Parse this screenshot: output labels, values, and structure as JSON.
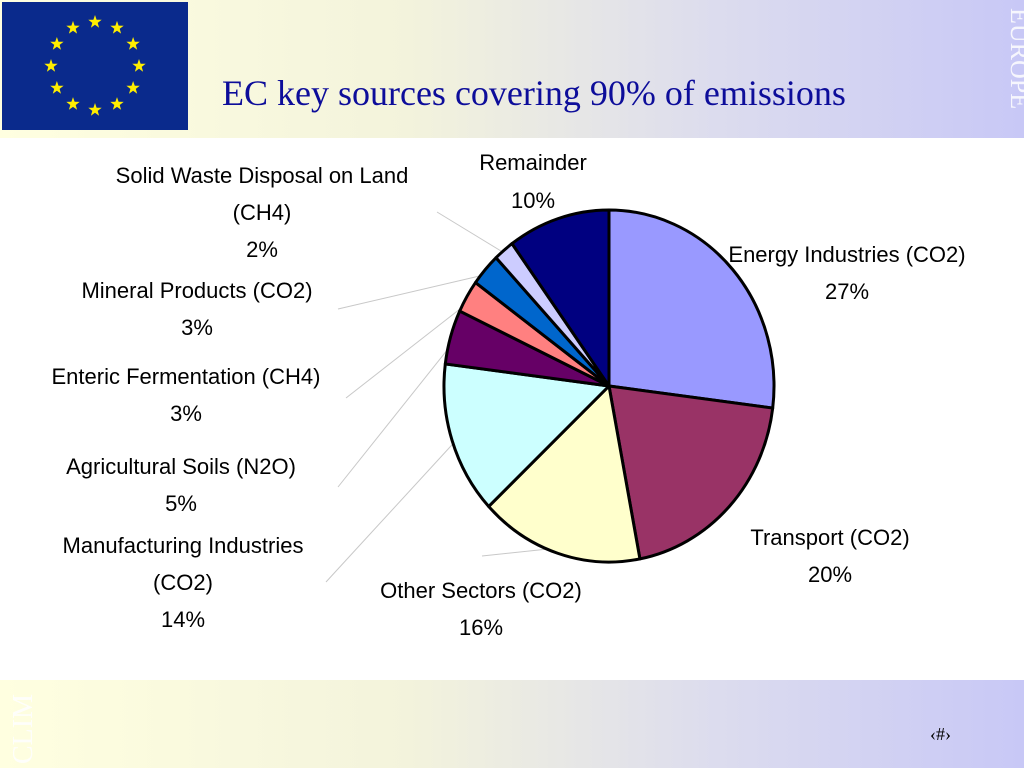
{
  "slide": {
    "title": "EC key sources covering 90% of emissions",
    "side_text_right": "EUROPE",
    "side_text_left": "CLIM",
    "page_number": "‹#›"
  },
  "chart_data": {
    "type": "pie",
    "title": "EC key sources covering 90% of emissions",
    "slices": [
      {
        "label": "Energy Industries (CO2)",
        "value": 27,
        "value_label": "27%",
        "color": "#9999ff"
      },
      {
        "label": "Transport (CO2)",
        "value": 20,
        "value_label": "20%",
        "color": "#993366"
      },
      {
        "label": "Other Sectors (CO2)",
        "value": 16,
        "value_label": "16%",
        "color": "#ffffcc"
      },
      {
        "label": "Manufacturing Industries (CO2)",
        "value": 14,
        "value_label": "14%",
        "color": "#ccffff"
      },
      {
        "label": "Agricultural Soils (N2O)",
        "value": 5,
        "value_label": "5%",
        "color": "#660066"
      },
      {
        "label": "Enteric Fermentation (CH4)",
        "value": 3,
        "value_label": "3%",
        "color": "#ff8080"
      },
      {
        "label": "Mineral Products (CO2)",
        "value": 3,
        "value_label": "3%",
        "color": "#0066cc"
      },
      {
        "label": "Solid Waste Disposal on Land (CH4)",
        "value": 2,
        "value_label": "2%",
        "color": "#ccccff"
      },
      {
        "label": "Remainder",
        "value": 10,
        "value_label": "10%",
        "color": "#000080"
      }
    ]
  }
}
